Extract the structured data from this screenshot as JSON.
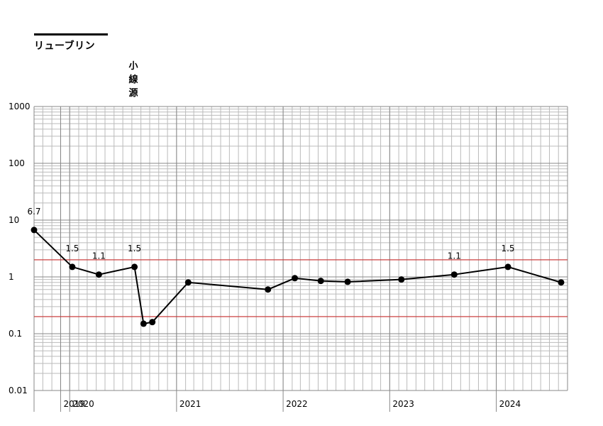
{
  "title": "リューブリン",
  "annotation": {
    "chars": [
      "小",
      "線",
      "源"
    ]
  },
  "colors": {
    "line": "#000000",
    "reference_line": "#cc3333",
    "grid_major": "#888888",
    "grid_minor": "#bbbbbb"
  },
  "chart_data": {
    "type": "line",
    "title": "リューブリン",
    "xlabel": "",
    "ylabel": "",
    "y_scale": "log",
    "ylim": [
      0.01,
      1000
    ],
    "y_ticks": [
      "0.01",
      "0.1",
      "1",
      "10",
      "100",
      "1000"
    ],
    "xlim": [
      "2019-09-01",
      "2024-09-01"
    ],
    "x_tick_labels": [
      {
        "label": "2019",
        "date": "2019-12-01"
      },
      {
        "label": "2020",
        "date": "2020-01-01"
      },
      {
        "label": "2021",
        "date": "2021-01-01"
      },
      {
        "label": "2022",
        "date": "2022-01-01"
      },
      {
        "label": "2023",
        "date": "2023-01-01"
      },
      {
        "label": "2024",
        "date": "2024-01-01"
      }
    ],
    "grid": true,
    "reference_lines": [
      2,
      0.2
    ],
    "series": [
      {
        "points": [
          {
            "x": "2019-09-01",
            "y": 6.7,
            "label": "6.7"
          },
          {
            "x": "2020-01-10",
            "y": 1.5,
            "label": "1.5"
          },
          {
            "x": "2020-04-10",
            "y": 1.1,
            "label": "1.1"
          },
          {
            "x": "2020-08-10",
            "y": 1.5,
            "label": "1.5"
          },
          {
            "x": "2020-09-10",
            "y": 0.15
          },
          {
            "x": "2020-10-10",
            "y": 0.16
          },
          {
            "x": "2021-02-10",
            "y": 0.8
          },
          {
            "x": "2021-11-10",
            "y": 0.6
          },
          {
            "x": "2022-02-10",
            "y": 0.95
          },
          {
            "x": "2022-05-10",
            "y": 0.85
          },
          {
            "x": "2022-08-10",
            "y": 0.82
          },
          {
            "x": "2023-02-10",
            "y": 0.9
          },
          {
            "x": "2023-08-10",
            "y": 1.1,
            "label": "1.1"
          },
          {
            "x": "2024-02-10",
            "y": 1.5,
            "label": "1.5"
          },
          {
            "x": "2024-08-10",
            "y": 0.8
          }
        ]
      }
    ]
  }
}
